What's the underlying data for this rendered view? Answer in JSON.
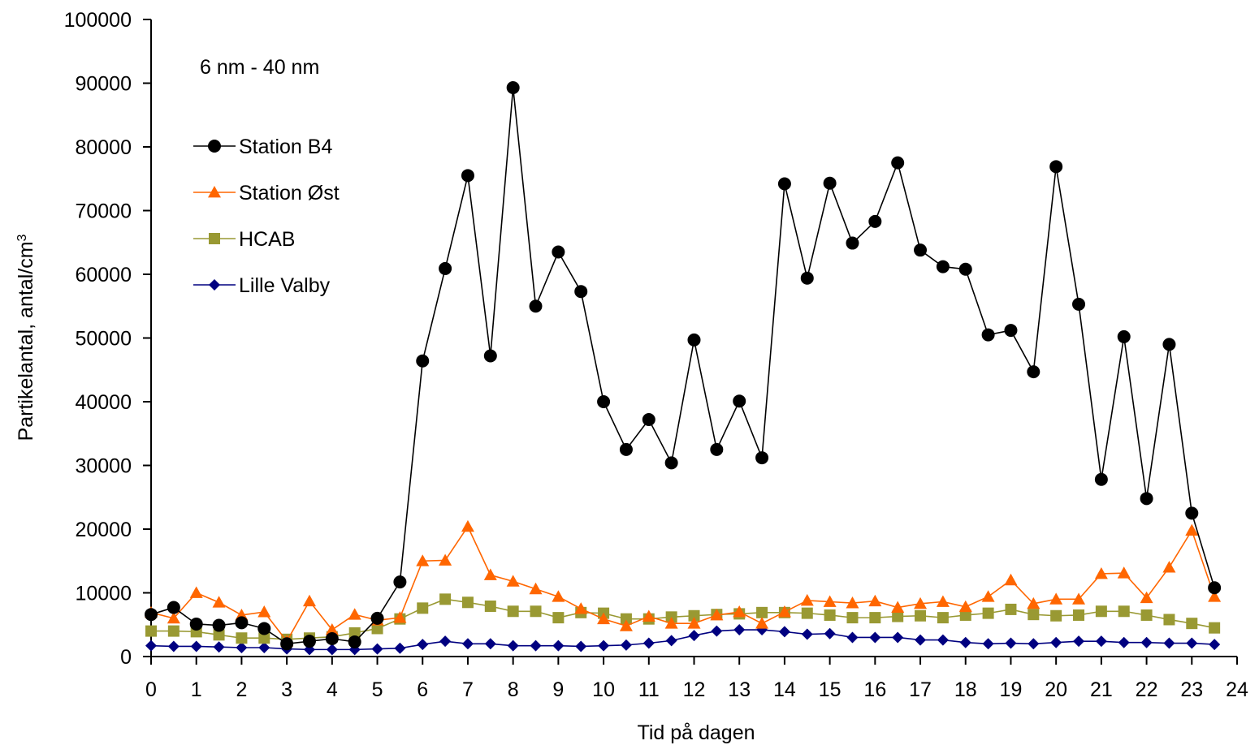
{
  "chart_data": {
    "type": "line",
    "annotation": "6 nm - 40 nm",
    "xlabel": "Tid på dagen",
    "ylabel_main": "Partikelantal, antal/cm",
    "ylabel_sup": "3",
    "xlim": [
      0,
      24
    ],
    "ylim": [
      0,
      100000
    ],
    "x_ticks": [
      0,
      1,
      2,
      3,
      4,
      5,
      6,
      7,
      8,
      9,
      10,
      11,
      12,
      13,
      14,
      15,
      16,
      17,
      18,
      19,
      20,
      21,
      22,
      23,
      24
    ],
    "y_ticks": [
      0,
      10000,
      20000,
      30000,
      40000,
      50000,
      60000,
      70000,
      80000,
      90000,
      100000
    ],
    "x": [
      0,
      0.5,
      1,
      1.5,
      2,
      2.5,
      3,
      3.5,
      4,
      4.5,
      5,
      5.5,
      6,
      6.5,
      7,
      7.5,
      8,
      8.5,
      9,
      9.5,
      10,
      10.5,
      11,
      11.5,
      12,
      12.5,
      13,
      13.5,
      14,
      14.5,
      15,
      15.5,
      16,
      16.5,
      17,
      17.5,
      18,
      18.5,
      19,
      19.5,
      20,
      20.5,
      21,
      21.5,
      22,
      22.5,
      23,
      23.5
    ],
    "grid": false,
    "legend_position": "upper-left",
    "series": [
      {
        "name": "Station B4",
        "color": "#000000",
        "marker": "circle",
        "values": [
          6600,
          7700,
          5100,
          4900,
          5300,
          4400,
          2000,
          2400,
          2800,
          2300,
          6000,
          11700,
          46400,
          60900,
          75500,
          47200,
          89300,
          55000,
          63500,
          57300,
          40000,
          32500,
          37200,
          30400,
          49700,
          32500,
          40100,
          31200,
          74200,
          59400,
          74300,
          64900,
          68300,
          77500,
          63800,
          61200,
          60800,
          50500,
          51200,
          44700,
          76900,
          55300,
          27800,
          50200,
          24800,
          49000,
          22500,
          10800
        ]
      },
      {
        "name": "Station Øst",
        "color": "#ff6600",
        "marker": "triangle",
        "values": [
          6900,
          6000,
          10000,
          8500,
          6500,
          7000,
          2400,
          8700,
          4200,
          6600,
          5700,
          6100,
          15000,
          15100,
          20400,
          12800,
          11800,
          10600,
          9400,
          7500,
          5900,
          4800,
          6300,
          5200,
          5200,
          6500,
          7000,
          5200,
          7000,
          8800,
          8600,
          8400,
          8700,
          7700,
          8300,
          8600,
          7800,
          9400,
          12000,
          8300,
          9000,
          9000,
          13000,
          13100,
          9200,
          14000,
          19800,
          9400
        ]
      },
      {
        "name": "HCAB",
        "color": "#999933",
        "marker": "square",
        "values": [
          4000,
          4000,
          3900,
          3400,
          2900,
          2900,
          2700,
          2900,
          3100,
          3700,
          4400,
          5900,
          7600,
          9000,
          8500,
          7900,
          7100,
          7100,
          6100,
          6900,
          6800,
          5900,
          5900,
          6200,
          6400,
          6600,
          6700,
          6900,
          6900,
          6800,
          6500,
          6100,
          6100,
          6300,
          6400,
          6100,
          6500,
          6800,
          7400,
          6600,
          6400,
          6500,
          7100,
          7100,
          6500,
          5800,
          5200,
          4500
        ]
      },
      {
        "name": "Lille Valby",
        "color": "#000080",
        "marker": "diamond",
        "values": [
          1700,
          1600,
          1600,
          1500,
          1400,
          1400,
          1200,
          1100,
          1100,
          1100,
          1200,
          1300,
          1900,
          2400,
          2000,
          2000,
          1700,
          1700,
          1700,
          1600,
          1700,
          1800,
          2100,
          2500,
          3300,
          4000,
          4200,
          4200,
          3900,
          3500,
          3600,
          3000,
          3000,
          3000,
          2600,
          2600,
          2200,
          2000,
          2100,
          2000,
          2200,
          2400,
          2400,
          2200,
          2200,
          2100,
          2100,
          1900
        ]
      }
    ]
  }
}
